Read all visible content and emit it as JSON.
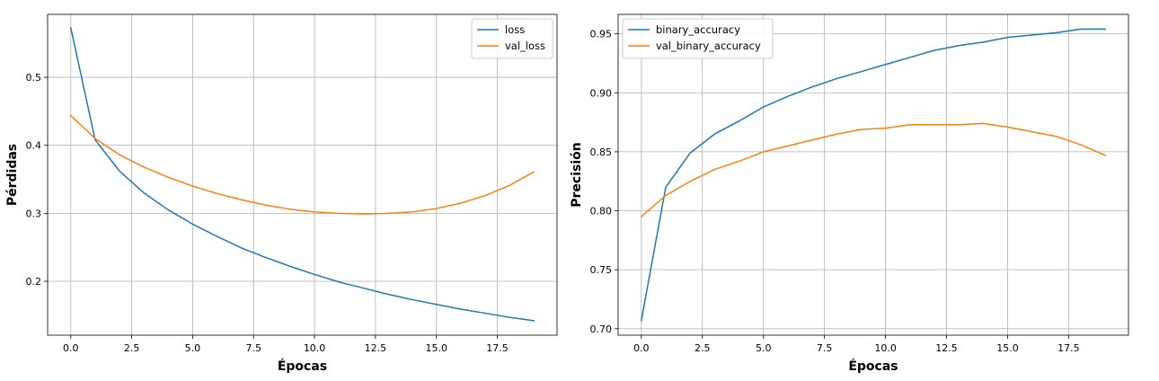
{
  "chart_data": [
    {
      "type": "line",
      "xlabel": "Épocas",
      "ylabel": "Pérdidas",
      "xlim": [
        -0.95,
        19.95
      ],
      "ylim": [
        0.1207,
        0.5926
      ],
      "xticks": [
        0.0,
        2.5,
        5.0,
        7.5,
        10.0,
        12.5,
        15.0,
        17.5
      ],
      "xtick_labels": [
        "0.0",
        "2.5",
        "5.0",
        "7.5",
        "10.0",
        "12.5",
        "15.0",
        "17.5"
      ],
      "yticks": [
        0.2,
        0.3,
        0.4,
        0.5
      ],
      "ytick_labels": [
        "0.2",
        "0.3",
        "0.4",
        "0.5"
      ],
      "grid": true,
      "legend_position": "top-right",
      "x": [
        0,
        1,
        2,
        3,
        4,
        5,
        6,
        7,
        8,
        9,
        10,
        11,
        12,
        13,
        14,
        15,
        16,
        17,
        18,
        19
      ],
      "series": [
        {
          "name": "loss",
          "color": "#1f77b4",
          "values": [
            0.573,
            0.408,
            0.362,
            0.33,
            0.305,
            0.284,
            0.266,
            0.249,
            0.235,
            0.222,
            0.21,
            0.199,
            0.19,
            0.181,
            0.173,
            0.166,
            0.159,
            0.153,
            0.147,
            0.142
          ]
        },
        {
          "name": "val_loss",
          "color": "#ff7f0e",
          "values": [
            0.444,
            0.41,
            0.386,
            0.368,
            0.353,
            0.34,
            0.329,
            0.32,
            0.312,
            0.306,
            0.302,
            0.3,
            0.299,
            0.3,
            0.302,
            0.307,
            0.315,
            0.326,
            0.341,
            0.361
          ]
        }
      ]
    },
    {
      "type": "line",
      "xlabel": "Épocas",
      "ylabel": "Precisión",
      "xlim": [
        -0.95,
        19.95
      ],
      "ylim": [
        0.6945,
        0.9665
      ],
      "xticks": [
        0.0,
        2.5,
        5.0,
        7.5,
        10.0,
        12.5,
        15.0,
        17.5
      ],
      "xtick_labels": [
        "0.0",
        "2.5",
        "5.0",
        "7.5",
        "10.0",
        "12.5",
        "15.0",
        "17.5"
      ],
      "yticks": [
        0.7,
        0.75,
        0.8,
        0.85,
        0.9,
        0.95
      ],
      "ytick_labels": [
        "0.70",
        "0.75",
        "0.80",
        "0.85",
        "0.90",
        "0.95"
      ],
      "grid": true,
      "legend_position": "top-left",
      "x": [
        0,
        1,
        2,
        3,
        4,
        5,
        6,
        7,
        8,
        9,
        10,
        11,
        12,
        13,
        14,
        15,
        16,
        17,
        18,
        19
      ],
      "series": [
        {
          "name": "binary_accuracy",
          "color": "#1f77b4",
          "values": [
            0.707,
            0.82,
            0.849,
            0.865,
            0.876,
            0.888,
            0.897,
            0.905,
            0.912,
            0.918,
            0.924,
            0.93,
            0.936,
            0.94,
            0.943,
            0.947,
            0.949,
            0.951,
            0.954,
            0.954
          ]
        },
        {
          "name": "val_binary_accuracy",
          "color": "#ff7f0e",
          "values": [
            0.795,
            0.813,
            0.825,
            0.835,
            0.842,
            0.85,
            0.855,
            0.86,
            0.865,
            0.869,
            0.87,
            0.873,
            0.873,
            0.873,
            0.874,
            0.871,
            0.867,
            0.863,
            0.856,
            0.847
          ]
        }
      ]
    }
  ]
}
